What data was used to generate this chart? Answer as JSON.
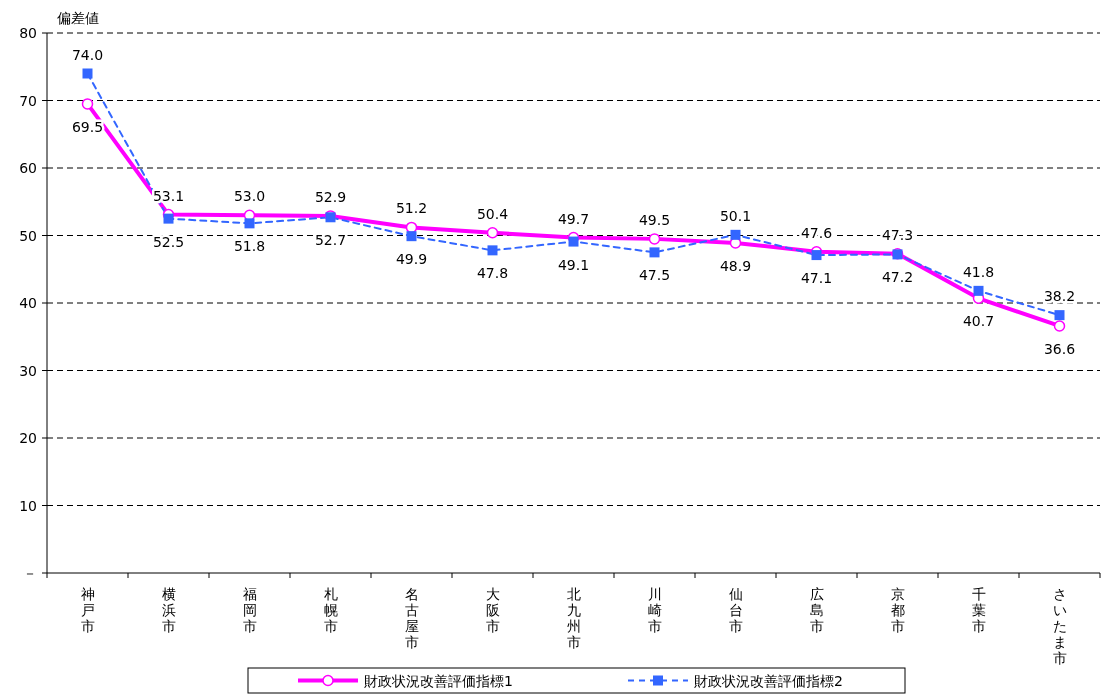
{
  "chart_data": {
    "type": "line",
    "ylabel": "偏差値",
    "categories": [
      "神戸市",
      "横浜市",
      "福岡市",
      "札幌市",
      "名古屋市",
      "大阪市",
      "北九州市",
      "川崎市",
      "仙台市",
      "広島市",
      "京都市",
      "千葉市",
      "さいたま市"
    ],
    "series": [
      {
        "name": "財政状況改善評価指標1",
        "color": "#ff00ff",
        "marker": "circle",
        "line_style": "solid",
        "values": [
          69.5,
          53.1,
          53.0,
          52.9,
          51.2,
          50.4,
          49.7,
          49.5,
          48.9,
          47.6,
          47.3,
          40.7,
          36.6
        ],
        "value_labels": [
          "69.5",
          "53.1",
          "53.0",
          "52.9",
          "51.2",
          "50.4",
          "49.7",
          "49.5",
          "48.9",
          "47.6",
          "47.3",
          "40.7",
          "36.6"
        ]
      },
      {
        "name": "財政状況改善評価指標2",
        "color": "#3366ff",
        "marker": "square",
        "line_style": "dashed",
        "values": [
          74.0,
          52.5,
          51.8,
          52.7,
          49.9,
          47.8,
          49.1,
          47.5,
          50.1,
          47.1,
          47.2,
          41.8,
          38.2
        ],
        "value_labels": [
          "74.0",
          "52.5",
          "51.8",
          "52.7",
          "49.9",
          "47.8",
          "49.1",
          "47.5",
          "50.1",
          "47.1",
          "47.2",
          "41.8",
          "38.2"
        ]
      }
    ],
    "ylim": [
      0,
      80
    ],
    "yticks": [
      {
        "value": 0,
        "label": "－"
      },
      10,
      20,
      30,
      40,
      50,
      60,
      70,
      80
    ],
    "grid": "y",
    "legend": "bottom"
  }
}
